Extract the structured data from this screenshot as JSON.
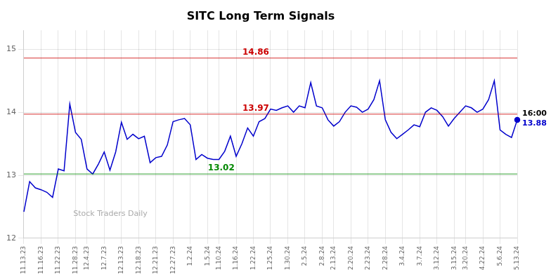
{
  "chart_data": {
    "type": "line",
    "title": "SITC Long Term Signals",
    "categories": [
      "11.13.23",
      null,
      null,
      "11.16.23",
      null,
      null,
      "11.22.23",
      null,
      null,
      "11.28.23",
      null,
      "12.4.23",
      null,
      null,
      "12.7.23",
      null,
      null,
      "12.13.23",
      null,
      null,
      "12.18.23",
      null,
      null,
      "12.21.23",
      null,
      null,
      "12.27.23",
      null,
      null,
      "1.2.24",
      null,
      null,
      "1.5.24",
      null,
      "1.10.24",
      null,
      null,
      "1.16.24",
      null,
      null,
      "1.22.24",
      null,
      null,
      "1.25.24",
      null,
      null,
      "1.30.24",
      null,
      null,
      "2.5.24",
      null,
      null,
      "2.8.24",
      null,
      "2.13.24",
      null,
      null,
      "2.20.24",
      null,
      null,
      "2.23.24",
      null,
      null,
      "2.28.24",
      null,
      null,
      "3.4.24",
      null,
      null,
      "3.7.24",
      null,
      null,
      "3.12.24",
      null,
      null,
      "3.15.24",
      null,
      "3.20.24",
      null,
      null,
      "4.22.24",
      null,
      null,
      "5.6.24",
      null,
      null,
      "5.13.24"
    ],
    "values": [
      12.42,
      12.9,
      12.8,
      12.77,
      12.73,
      12.65,
      13.1,
      13.07,
      14.13,
      13.68,
      13.57,
      13.1,
      13.02,
      13.18,
      13.37,
      13.08,
      13.37,
      13.84,
      13.57,
      13.65,
      13.58,
      13.62,
      13.2,
      13.28,
      13.3,
      13.48,
      13.85,
      13.88,
      13.9,
      13.8,
      13.25,
      13.33,
      13.27,
      13.25,
      13.25,
      13.38,
      13.62,
      13.3,
      13.5,
      13.75,
      13.62,
      13.85,
      13.9,
      14.05,
      14.03,
      14.07,
      14.1,
      14.0,
      14.1,
      14.07,
      14.47,
      14.1,
      14.07,
      13.88,
      13.78,
      13.85,
      14.0,
      14.1,
      14.08,
      14.0,
      14.05,
      14.2,
      14.5,
      13.88,
      13.68,
      13.58,
      13.65,
      13.72,
      13.8,
      13.77,
      14.0,
      14.07,
      14.03,
      13.93,
      13.78,
      13.9,
      14.0,
      14.1,
      14.07,
      14.0,
      14.05,
      14.2,
      14.5,
      13.72,
      13.65,
      13.6,
      13.88
    ],
    "color": "#0000cc",
    "ylim": [
      12,
      15.3
    ],
    "yticks": [
      12,
      13,
      14,
      15
    ],
    "grid": true,
    "reference_lines": [
      {
        "value": 14.86,
        "label": "14.86",
        "color": "#cc0000"
      },
      {
        "value": 13.97,
        "label": "13.97",
        "color": "#cc0000"
      },
      {
        "value": 13.02,
        "label": "13.02",
        "color": "#008800"
      }
    ],
    "annotations": [
      {
        "text": "16:00",
        "color": "#000000"
      },
      {
        "text": "13.88",
        "color": "#0000cc"
      }
    ],
    "watermark": "Stock Traders Daily"
  }
}
